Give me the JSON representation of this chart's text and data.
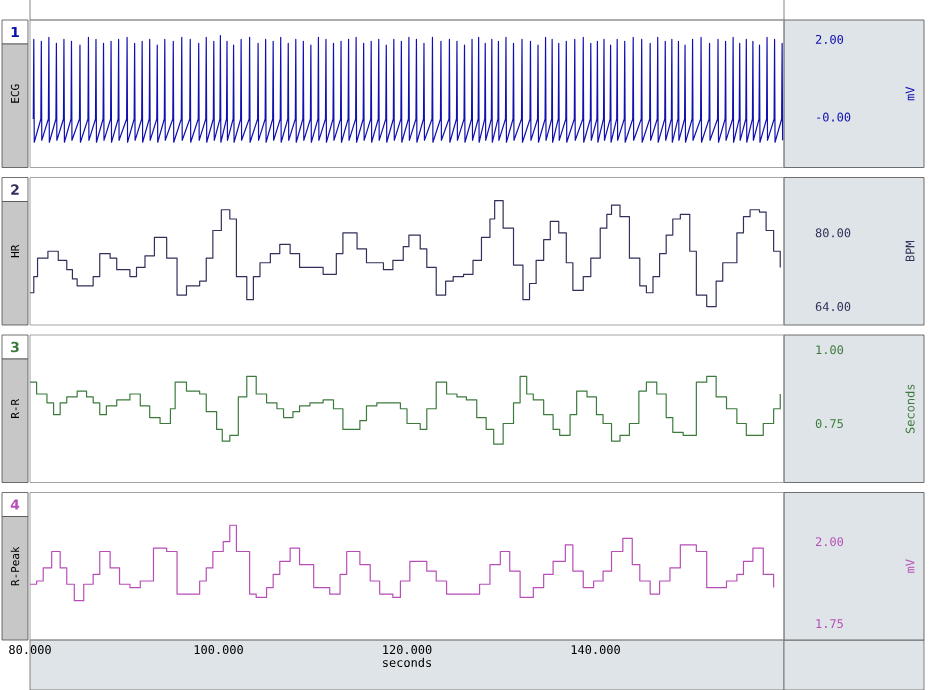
{
  "chart_data": [
    {
      "type": "line",
      "title": "ECG",
      "ylabel": "mV",
      "annotations": [
        "1"
      ],
      "color": "#1010b0",
      "xlim": [
        80,
        160
      ],
      "ylim": [
        -1.3,
        2.5
      ],
      "yticks": [
        {
          "value": 2,
          "label": "2.00"
        },
        {
          "value": 0,
          "label": "-0.00"
        }
      ],
      "tick_labels": "y",
      "x": [
        80.35,
        80.4,
        80.45,
        81.15,
        81.2,
        81.25,
        81.95,
        82.0,
        82.05,
        82.75,
        82.8,
        82.85,
        83.55,
        83.6,
        83.65,
        84.35,
        84.4,
        84.45,
        85.25,
        85.3,
        85.35,
        86.15,
        86.2,
        86.25,
        86.95,
        87.0,
        87.05,
        87.75,
        87.8,
        87.85,
        88.55,
        88.6,
        88.65,
        89.35,
        89.4,
        89.45,
        90.25,
        90.3,
        90.35,
        91.05,
        91.1,
        91.15,
        91.85,
        91.9,
        91.95,
        92.65,
        92.7,
        92.75,
        93.45,
        93.5,
        93.55,
        94.25,
        94.3,
        94.35,
        95.15,
        95.2,
        95.25,
        96.05,
        96.1,
        96.15,
        96.95,
        97.0,
        97.05,
        97.85,
        97.9,
        97.95,
        98.65,
        98.7,
        98.75,
        99.45,
        99.5,
        99.55,
        100.15,
        100.2,
        100.25,
        100.85,
        100.9,
        100.95,
        101.55,
        101.6,
        101.65,
        102.35,
        102.4,
        102.45,
        103.25,
        103.3,
        103.35,
        104.15,
        104.2,
        104.25,
        104.95,
        105.0,
        105.05,
        105.75,
        105.8,
        105.85,
        106.55,
        106.6,
        106.65,
        107.35,
        107.4,
        107.45,
        108.15,
        108.2,
        108.25,
        108.95,
        109.0,
        109.05,
        109.75,
        109.8,
        109.85,
        110.55,
        110.6,
        110.65,
        111.35,
        111.4,
        111.45,
        112.15,
        112.2,
        112.25,
        112.95,
        113.0,
        113.05,
        113.75,
        113.8,
        113.85,
        114.55,
        114.6,
        114.65,
        115.35,
        115.4,
        115.45,
        116.15,
        116.2,
        116.25,
        116.95,
        117.0,
        117.05,
        117.75,
        117.8,
        117.85,
        118.55,
        118.6,
        118.65,
        119.35,
        119.4,
        119.45,
        120.15,
        120.2,
        120.25,
        120.95,
        121.0,
        121.05,
        121.75,
        121.8,
        121.85,
        122.65,
        122.7,
        122.75,
        123.55,
        123.6,
        123.65,
        124.45,
        124.5,
        124.55,
        125.25,
        125.3,
        125.35,
        126.05,
        126.1,
        126.15,
        126.85,
        126.9,
        126.95,
        127.55,
        127.6,
        127.65,
        128.25,
        128.3,
        128.35,
        128.95,
        129.0,
        129.05,
        129.65,
        129.7,
        129.75,
        130.45,
        130.5,
        130.55,
        131.25,
        131.3,
        131.35,
        132.15,
        132.2,
        132.25,
        133.05,
        133.1,
        133.15,
        133.85,
        133.9,
        133.95,
        134.65,
        134.7,
        134.75,
        135.35,
        135.4,
        135.45,
        136.05,
        136.1,
        136.15,
        136.85,
        136.9,
        136.95,
        137.75,
        137.8,
        137.85,
        138.65,
        138.7,
        138.75,
        139.45,
        139.5,
        139.55,
        140.15,
        140.2,
        140.25,
        140.85,
        140.9,
        140.95,
        141.55,
        141.6,
        141.65,
        142.25,
        142.3,
        142.35,
        143.05,
        143.1,
        143.15,
        143.95,
        144.0,
        144.05,
        144.85,
        144.9,
        144.95,
        145.75,
        145.8,
        145.85,
        146.55,
        146.6,
        146.65,
        147.35,
        147.4,
        147.45,
        148.05,
        148.1,
        148.15,
        148.75,
        148.8,
        148.85,
        149.45,
        149.5,
        149.55,
        150.25,
        150.3,
        150.35,
        151.15,
        151.2,
        151.25,
        152.05,
        152.1,
        152.15,
        152.95,
        153.0,
        153.05,
        153.75,
        153.8,
        153.85,
        154.55,
        154.6,
        154.65,
        155.25,
        155.3,
        155.35,
        155.95,
        156.0,
        156.05,
        156.65,
        156.7,
        156.75,
        157.35,
        157.4,
        157.45,
        158.15,
        158.2,
        158.25,
        158.95,
        159.0,
        159.05,
        159.75,
        159.8,
        159.85
      ],
      "values": [
        -0.05,
        2.0,
        -0.65,
        -0.05,
        1.95,
        -0.6,
        -0.05,
        2.05,
        -0.65,
        -0.05,
        1.9,
        -0.6,
        -0.05,
        2.0,
        -0.65,
        -0.05,
        1.95,
        -0.6,
        -0.05,
        1.85,
        -0.65,
        -0.05,
        2.05,
        -0.6,
        -0.05,
        2.0,
        -0.65,
        -0.05,
        1.9,
        -0.6,
        -0.05,
        1.95,
        -0.65,
        -0.05,
        2.0,
        -0.6,
        -0.05,
        2.05,
        -0.65,
        -0.05,
        1.9,
        -0.6,
        -0.05,
        1.95,
        -0.65,
        -0.05,
        2.0,
        -0.6,
        -0.05,
        1.85,
        -0.65,
        -0.05,
        2.0,
        -0.6,
        -0.05,
        1.95,
        -0.65,
        -0.05,
        2.05,
        -0.6,
        -0.05,
        2.0,
        -0.65,
        -0.05,
        1.9,
        -0.6,
        -0.05,
        2.05,
        -0.65,
        -0.05,
        1.95,
        -0.6,
        -0.05,
        2.1,
        -0.65,
        -0.05,
        1.95,
        -0.6,
        -0.05,
        1.85,
        -0.65,
        -0.05,
        2.0,
        -0.6,
        -0.05,
        2.05,
        -0.65,
        -0.05,
        1.9,
        -0.6,
        -0.05,
        2.0,
        -0.65,
        -0.05,
        1.95,
        -0.6,
        -0.05,
        2.05,
        -0.65,
        -0.05,
        1.9,
        -0.6,
        -0.05,
        2.0,
        -0.65,
        -0.05,
        1.95,
        -0.6,
        -0.05,
        1.85,
        -0.65,
        -0.05,
        2.05,
        -0.6,
        -0.05,
        2.0,
        -0.65,
        -0.05,
        1.9,
        -0.6,
        -0.05,
        1.95,
        -0.65,
        -0.05,
        2.0,
        -0.6,
        -0.05,
        2.05,
        -0.65,
        -0.05,
        1.9,
        -0.6,
        -0.05,
        1.95,
        -0.65,
        -0.05,
        2.0,
        -0.6,
        -0.05,
        1.85,
        -0.65,
        -0.05,
        2.0,
        -0.6,
        -0.05,
        1.95,
        -0.65,
        -0.05,
        2.05,
        -0.6,
        -0.05,
        2.0,
        -0.65,
        -0.05,
        1.9,
        -0.6,
        -0.05,
        2.05,
        -0.65,
        -0.05,
        1.95,
        -0.6,
        -0.05,
        2.0,
        -0.65,
        -0.05,
        1.95,
        -0.6,
        -0.05,
        1.85,
        -0.65,
        -0.05,
        2.0,
        -0.6,
        -0.05,
        2.05,
        -0.65,
        -0.05,
        1.9,
        -0.6,
        -0.05,
        2.0,
        -0.65,
        -0.05,
        1.95,
        -0.6,
        -0.05,
        2.05,
        -0.65,
        -0.05,
        1.9,
        -0.6,
        -0.05,
        2.0,
        -0.65,
        -0.05,
        1.95,
        -0.6,
        -0.05,
        1.85,
        -0.65,
        -0.05,
        2.05,
        -0.6,
        -0.05,
        2.0,
        -0.65,
        -0.05,
        1.9,
        -0.6,
        -0.05,
        1.95,
        -0.65,
        -0.05,
        2.0,
        -0.6,
        -0.05,
        2.05,
        -0.65,
        -0.05,
        1.9,
        -0.6,
        -0.05,
        1.95,
        -0.65,
        -0.05,
        2.0,
        -0.6,
        -0.05,
        1.85,
        -0.65,
        -0.05,
        2.0,
        -0.6,
        -0.05,
        1.95,
        -0.65,
        -0.05,
        2.05,
        -0.6,
        -0.05,
        2.0,
        -0.65,
        -0.05,
        1.9,
        -0.6,
        -0.05,
        2.05,
        -0.65,
        -0.05,
        1.95,
        -0.6,
        -0.05,
        2.0,
        -0.65,
        -0.05,
        1.95,
        -0.6,
        -0.05,
        1.85,
        -0.65,
        -0.05,
        2.0,
        -0.6,
        -0.05,
        2.05,
        -0.65,
        -0.05,
        1.9,
        -0.6,
        -0.05,
        2.0,
        -0.65,
        -0.05,
        1.95,
        -0.6,
        -0.05,
        2.05,
        -0.65,
        -0.05,
        1.9,
        -0.6,
        -0.05,
        2.0,
        -0.65,
        -0.05,
        1.95,
        -0.6,
        -0.05,
        1.85,
        -0.65,
        -0.05,
        2.05,
        -0.6,
        -0.05,
        2.0,
        -0.65,
        -0.05,
        1.9,
        -0.6
      ]
    },
    {
      "type": "step",
      "title": "HR",
      "ylabel": "BPM",
      "annotations": [
        "2"
      ],
      "color": "#30305a",
      "xlim": [
        80,
        160
      ],
      "ylim": [
        60,
        92
      ],
      "yticks": [
        {
          "value": 80,
          "label": "80.00"
        },
        {
          "value": 64,
          "label": "64.00"
        }
      ],
      "tick_labels": "y",
      "x": [
        80.0,
        80.4,
        80.8,
        81.9,
        83.0,
        83.9,
        84.5,
        85.0,
        85.7,
        86.7,
        87.4,
        88.5,
        89.2,
        90.6,
        91.3,
        92.2,
        93.2,
        94.5,
        95.6,
        96.6,
        98.0,
        98.7,
        99.4,
        100.3,
        101.2,
        101.9,
        103.0,
        103.7,
        104.4,
        105.5,
        106.5,
        107.6,
        108.6,
        111.1,
        112.5,
        113.2,
        114.7,
        115.7,
        116.4,
        117.5,
        118.5,
        119.6,
        120.2,
        121.4,
        122.1,
        123.1,
        124.1,
        124.9,
        126.0,
        127.0,
        127.9,
        128.8,
        129.3,
        130.2,
        131.3,
        132.3,
        133.0,
        133.7,
        134.5,
        135.2,
        136.1,
        136.9,
        137.6,
        138.7,
        139.5,
        140.5,
        141.2,
        141.7,
        142.6,
        143.6,
        144.7,
        145.4,
        146.1,
        146.8,
        147.5,
        148.2,
        149.0,
        150.0,
        150.7,
        151.8,
        152.8,
        153.5,
        154.6,
        155.0,
        155.7,
        156.4,
        157.4,
        158.1,
        158.9,
        159.6
      ],
      "values": [
        67,
        70.5,
        74.5,
        76,
        74,
        72,
        70,
        68.5,
        68.5,
        70.5,
        75.5,
        74.5,
        72,
        70.5,
        72.5,
        75,
        79,
        74.5,
        66.5,
        68.5,
        69.5,
        74.5,
        80.5,
        85,
        83,
        70.5,
        65.5,
        70.5,
        73.5,
        75.5,
        77.5,
        75.5,
        72.5,
        71,
        75.5,
        80,
        76.5,
        73.5,
        73.5,
        72,
        74,
        77,
        79.5,
        76.5,
        72.5,
        66.5,
        69.5,
        70.5,
        71,
        74,
        79,
        83,
        87,
        81,
        73,
        65.5,
        69,
        74,
        78.5,
        82.5,
        80,
        73.5,
        67.5,
        70.5,
        74.5,
        81,
        84,
        86,
        83.5,
        74.5,
        68.5,
        67,
        70.5,
        75.5,
        79.5,
        83,
        84,
        76,
        66.5,
        64,
        69.5,
        73.5,
        73.5,
        80,
        83.5,
        85,
        84.5,
        80.5,
        76,
        72.5
      ]
    },
    {
      "type": "step",
      "title": "R-R",
      "ylabel": "Seconds",
      "annotations": [
        "3"
      ],
      "color": "#3c7a3c",
      "xlim": [
        80,
        160
      ],
      "ylim": [
        0.55,
        1.05
      ],
      "yticks": [
        {
          "value": 1,
          "label": "1.00"
        },
        0.75
      ],
      "tick_labels": "y",
      "x": [
        80.0,
        80.7,
        81.8,
        82.5,
        83.2,
        83.9,
        85.0,
        86.0,
        86.7,
        87.4,
        88.1,
        89.2,
        90.6,
        91.7,
        92.7,
        93.8,
        94.9,
        95.4,
        96.6,
        98.0,
        98.7,
        99.8,
        100.4,
        101.2,
        102.1,
        103.0,
        104.0,
        105.1,
        106.2,
        106.9,
        107.9,
        108.6,
        109.7,
        111.1,
        112.2,
        113.2,
        115.0,
        115.7,
        116.8,
        117.8,
        119.3,
        120.0,
        121.4,
        122.1,
        123.1,
        124.2,
        125.3,
        126.3,
        127.4,
        128.4,
        129.2,
        130.2,
        131.3,
        132.0,
        132.7,
        133.4,
        134.5,
        135.5,
        136.2,
        137.3,
        138.0,
        139.1,
        140.1,
        140.8,
        141.7,
        142.6,
        143.6,
        144.6,
        145.4,
        146.5,
        147.5,
        148.2,
        149.3,
        150.7,
        151.8,
        152.8,
        153.9,
        155.0,
        156.0,
        157.8,
        158.9,
        159.6
      ],
      "values": [
        0.89,
        0.85,
        0.82,
        0.78,
        0.82,
        0.84,
        0.86,
        0.84,
        0.82,
        0.78,
        0.81,
        0.83,
        0.85,
        0.81,
        0.77,
        0.75,
        0.8,
        0.89,
        0.86,
        0.85,
        0.79,
        0.73,
        0.69,
        0.71,
        0.84,
        0.91,
        0.85,
        0.82,
        0.8,
        0.77,
        0.79,
        0.81,
        0.82,
        0.83,
        0.8,
        0.73,
        0.76,
        0.81,
        0.82,
        0.82,
        0.8,
        0.75,
        0.73,
        0.8,
        0.89,
        0.85,
        0.84,
        0.83,
        0.77,
        0.73,
        0.68,
        0.75,
        0.82,
        0.91,
        0.85,
        0.83,
        0.78,
        0.73,
        0.71,
        0.78,
        0.86,
        0.84,
        0.78,
        0.75,
        0.69,
        0.71,
        0.75,
        0.86,
        0.89,
        0.85,
        0.77,
        0.72,
        0.71,
        0.89,
        0.91,
        0.84,
        0.8,
        0.75,
        0.71,
        0.75,
        0.8,
        0.85
      ]
    },
    {
      "type": "step",
      "title": "R-Peak",
      "ylabel": "mV",
      "xlabel": "seconds",
      "annotations": [
        "4"
      ],
      "color": "#b84db8",
      "xlim": [
        80,
        160
      ],
      "xticks": [
        {
          "value": 80,
          "label": "80.000"
        },
        {
          "value": 100,
          "label": "100.000"
        },
        {
          "value": 120,
          "label": "120.000"
        },
        {
          "value": 140,
          "label": "140.000"
        }
      ],
      "ylim": [
        1.7,
        2.15
      ],
      "yticks": [
        {
          "value": 2,
          "label": "2.00"
        },
        1.75
      ],
      "x": [
        80.0,
        80.7,
        81.4,
        82.3,
        83.2,
        83.9,
        84.7,
        85.7,
        86.7,
        87.4,
        88.5,
        89.5,
        90.6,
        91.7,
        93.1,
        94.5,
        95.6,
        96.6,
        98.0,
        98.7,
        99.4,
        100.5,
        101.2,
        101.9,
        103.3,
        104.0,
        105.1,
        105.8,
        106.5,
        107.6,
        108.6,
        110.1,
        111.8,
        112.9,
        113.6,
        115.0,
        116.1,
        117.1,
        118.5,
        119.3,
        120.3,
        122.1,
        123.1,
        124.2,
        126.3,
        127.7,
        128.8,
        129.9,
        130.9,
        132.0,
        133.4,
        134.5,
        135.5,
        136.8,
        137.6,
        138.7,
        139.8,
        140.8,
        141.7,
        142.9,
        143.9,
        144.7,
        145.8,
        146.8,
        147.9,
        149.0,
        150.7,
        151.8,
        152.8,
        153.9,
        155.0,
        155.7,
        156.7,
        157.8,
        158.9
      ],
      "values": [
        1.87,
        1.88,
        1.92,
        1.97,
        1.92,
        1.87,
        1.82,
        1.87,
        1.9,
        1.97,
        1.92,
        1.87,
        1.86,
        1.88,
        1.98,
        1.97,
        1.84,
        1.84,
        1.88,
        1.92,
        1.97,
        2.0,
        2.05,
        1.97,
        1.84,
        1.83,
        1.86,
        1.9,
        1.94,
        1.98,
        1.93,
        1.86,
        1.84,
        1.9,
        1.97,
        1.93,
        1.88,
        1.84,
        1.83,
        1.88,
        1.94,
        1.91,
        1.88,
        1.84,
        1.84,
        1.87,
        1.93,
        1.97,
        1.91,
        1.83,
        1.86,
        1.9,
        1.94,
        1.99,
        1.91,
        1.86,
        1.88,
        1.91,
        1.97,
        2.01,
        1.93,
        1.88,
        1.84,
        1.88,
        1.92,
        1.99,
        1.97,
        1.86,
        1.86,
        1.88,
        1.9,
        1.94,
        1.98,
        1.9,
        1.86
      ]
    }
  ]
}
